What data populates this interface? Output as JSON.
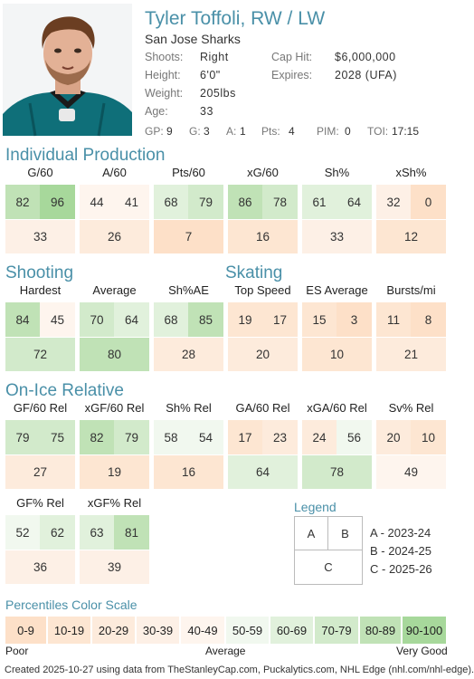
{
  "player": {
    "name": "Tyler Toffoli, RW / LW",
    "team": "San Jose Sharks"
  },
  "bio": {
    "shoots_label": "Shoots:",
    "shoots": "Right",
    "height_label": "Height:",
    "height": "6'0\"",
    "weight_label": "Weight:",
    "weight": "205lbs",
    "age_label": "Age:",
    "age": "33",
    "caphit_label": "Cap Hit:",
    "caphit": "$6,000,000",
    "expires_label": "Expires:",
    "expires": "2028 (UFA)"
  },
  "season_stats": {
    "gp_label": "GP:",
    "gp": "9",
    "g_label": "G:",
    "g": "3",
    "a_label": "A:",
    "a": "1",
    "pts_label": "Pts:",
    "pts": "4",
    "pim_label": "PIM:",
    "pim": "0",
    "toi_label": "TOI:",
    "toi": "17:15"
  },
  "sections": {
    "production": "Individual Production",
    "shooting": "Shooting",
    "skating": "Skating",
    "onice": "On-Ice Relative"
  },
  "stats": {
    "g60": {
      "label": "G/60",
      "a": 82,
      "b": 96,
      "c": 33
    },
    "a60": {
      "label": "A/60",
      "a": 44,
      "b": 41,
      "c": 26
    },
    "pts60": {
      "label": "Pts/60",
      "a": 68,
      "b": 79,
      "c": 7
    },
    "xg60": {
      "label": "xG/60",
      "a": 86,
      "b": 78,
      "c": 16
    },
    "sh": {
      "label": "Sh%",
      "a": 61,
      "b": 64,
      "c": 33
    },
    "xsh": {
      "label": "xSh%",
      "a": 32,
      "b": 0,
      "c": 12
    },
    "hardest": {
      "label": "Hardest",
      "a": 84,
      "b": 45,
      "c": 72
    },
    "average": {
      "label": "Average",
      "a": 70,
      "b": 64,
      "c": 80
    },
    "shae": {
      "label": "Sh%AE",
      "a": 68,
      "b": 85,
      "c": 28
    },
    "topspeed": {
      "label": "Top Speed",
      "a": 19,
      "b": 17,
      "c": 20
    },
    "esavg": {
      "label": "ES Average",
      "a": 15,
      "b": 3,
      "c": 10
    },
    "bursts": {
      "label": "Bursts/mi",
      "a": 11,
      "b": 8,
      "c": 21
    },
    "gf60": {
      "label": "GF/60 Rel",
      "a": 79,
      "b": 75,
      "c": 27
    },
    "xgf60": {
      "label": "xGF/60 Rel",
      "a": 82,
      "b": 79,
      "c": 19
    },
    "shrel": {
      "label": "Sh% Rel",
      "a": 58,
      "b": 54,
      "c": 16
    },
    "ga60": {
      "label": "GA/60 Rel",
      "a": 17,
      "b": 23,
      "c": 64
    },
    "xga60": {
      "label": "xGA/60 Rel",
      "a": 24,
      "b": 56,
      "c": 78
    },
    "svrel": {
      "label": "Sv% Rel",
      "a": 20,
      "b": 10,
      "c": 49
    },
    "gfpct": {
      "label": "GF% Rel",
      "a": 52,
      "b": 62,
      "c": 36
    },
    "xgfpct": {
      "label": "xGF% Rel",
      "a": 63,
      "b": 81,
      "c": 39
    }
  },
  "legend": {
    "title": "Legend",
    "a": "A",
    "b": "B",
    "c": "C",
    "a_text": "A - 2023-24",
    "b_text": "B - 2024-25",
    "c_text": "C - 2025-26"
  },
  "scale": {
    "title": "Percentiles Color Scale",
    "bins": [
      "0-9",
      "10-19",
      "20-29",
      "30-39",
      "40-49",
      "50-59",
      "60-69",
      "70-79",
      "80-89",
      "90-100"
    ],
    "low": "Poor",
    "mid": "Average",
    "high": "Very Good"
  },
  "footer": "Created 2025-10-27 using data from TheStanleyCap.com, Puckalytics.com, NHL Edge (nhl.com/nhl-edge)."
}
